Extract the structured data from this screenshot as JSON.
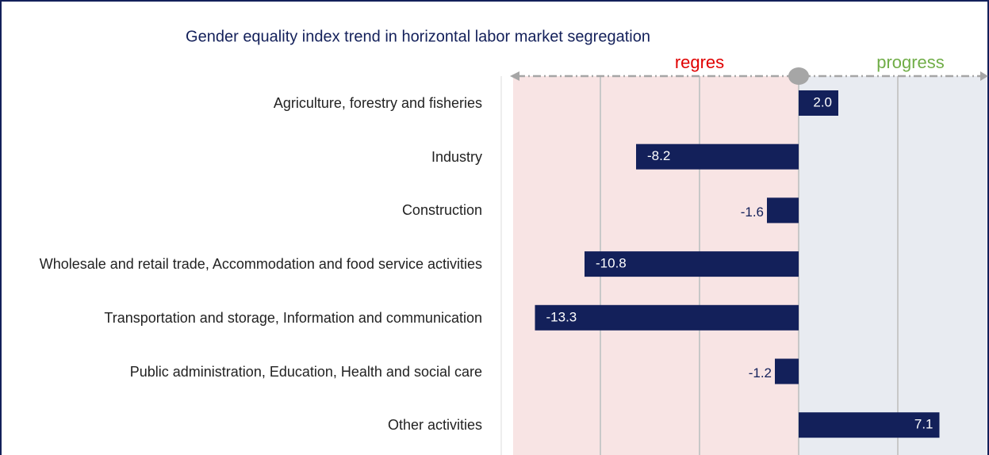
{
  "chart_data": {
    "type": "hbar",
    "title": "Gender equality index trend in horizontal labor market segregation",
    "annotations": [
      "regres",
      "progress"
    ],
    "categories": [
      "Agriculture, forestry and fisheries",
      "Industry",
      "Construction",
      "Wholesale and retail trade, Accommodation and food service activities",
      "Transportation and storage, Information and communication",
      "Public administration, Education, Health and social care",
      "Other activities"
    ],
    "values": [
      2.0,
      -8.2,
      -1.6,
      -10.8,
      -13.3,
      -1.2,
      7.1
    ],
    "value_labels": [
      "2.0",
      "-8.2",
      "-1.6",
      "-10.8",
      "-13.3",
      "-1.2",
      "7.1"
    ],
    "color": "#13205a",
    "xlim": [
      -14.4,
      9.5
    ],
    "xticks": [
      -10,
      -5,
      0,
      5
    ],
    "grid": true
  }
}
